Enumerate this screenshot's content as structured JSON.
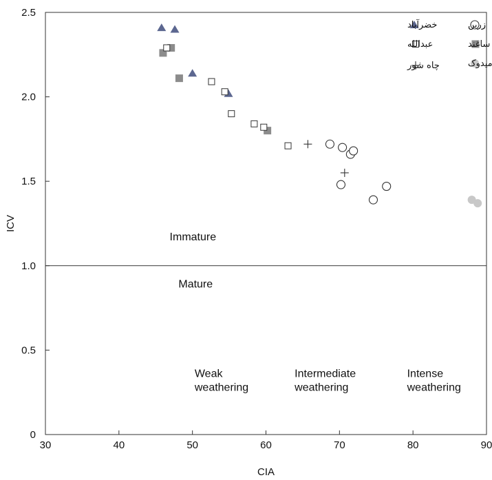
{
  "chart_data": {
    "type": "scatter",
    "xlabel": "CIA",
    "ylabel": "ICV",
    "xlim": [
      30,
      90
    ],
    "ylim": [
      0,
      2.5
    ],
    "x_ticks": [
      "30",
      "40",
      "50",
      "60",
      "70",
      "80",
      "90"
    ],
    "y_ticks": [
      "0",
      "0.5",
      "1.0",
      "1.5",
      "2.0",
      "2.5"
    ],
    "x_tick_values": [
      30,
      40,
      50,
      60,
      70,
      80,
      90
    ],
    "y_tick_values": [
      0,
      0.5,
      1.0,
      1.5,
      2.0,
      2.5
    ],
    "grid": false,
    "reference_line": {
      "y": 1.0
    },
    "annotations": [
      {
        "lines": [
          "Immature"
        ],
        "x": 46.9,
        "y": 1.15,
        "anchor": "start"
      },
      {
        "lines": [
          "Mature"
        ],
        "x": 48.1,
        "y": 0.87,
        "anchor": "start"
      },
      {
        "lines": [
          "Weak",
          "weathering"
        ],
        "x": 50.3,
        "y": 0.34,
        "anchor": "start"
      },
      {
        "lines": [
          "Intermediate",
          "weathering"
        ],
        "x": 63.9,
        "y": 0.34,
        "anchor": "start"
      },
      {
        "lines": [
          "Intense",
          "weathering"
        ],
        "x": 79.2,
        "y": 0.34,
        "anchor": "start"
      }
    ],
    "legend": {
      "placement": "top-right"
    },
    "series": [
      {
        "name": "زرین",
        "marker": "circle-open",
        "color": "#333333",
        "points": [
          [
            68.7,
            1.72
          ],
          [
            70.4,
            1.7
          ],
          [
            71.5,
            1.66
          ],
          [
            71.9,
            1.68
          ],
          [
            70.2,
            1.48
          ],
          [
            74.6,
            1.39
          ],
          [
            76.4,
            1.47
          ]
        ]
      },
      {
        "name": "خضرآباد",
        "marker": "triangle-filled",
        "color": "#5c6790",
        "points": [
          [
            45.8,
            2.41
          ],
          [
            47.6,
            2.4
          ],
          [
            50.0,
            2.14
          ],
          [
            54.9,
            2.02
          ]
        ]
      },
      {
        "name": "ساغند",
        "marker": "square-filled",
        "color": "#8c8c8c",
        "points": [
          [
            46.0,
            2.26
          ],
          [
            47.1,
            2.29
          ],
          [
            48.2,
            2.11
          ],
          [
            60.2,
            1.8
          ]
        ]
      },
      {
        "name": "عبدالله",
        "marker": "square-open",
        "color": "#333333",
        "points": [
          [
            46.5,
            2.29
          ],
          [
            52.6,
            2.09
          ],
          [
            54.4,
            2.03
          ],
          [
            55.3,
            1.9
          ],
          [
            58.4,
            1.84
          ],
          [
            59.7,
            1.82
          ],
          [
            63.0,
            1.71
          ]
        ]
      },
      {
        "name": "میدوک",
        "marker": "circle-filled",
        "color": "#c8c8c8",
        "points": [
          [
            88.0,
            1.39
          ],
          [
            88.8,
            1.37
          ]
        ]
      },
      {
        "name": "چاه شور",
        "marker": "plus",
        "color": "#333333",
        "points": [
          [
            65.7,
            1.72
          ],
          [
            70.7,
            1.55
          ]
        ]
      }
    ]
  }
}
